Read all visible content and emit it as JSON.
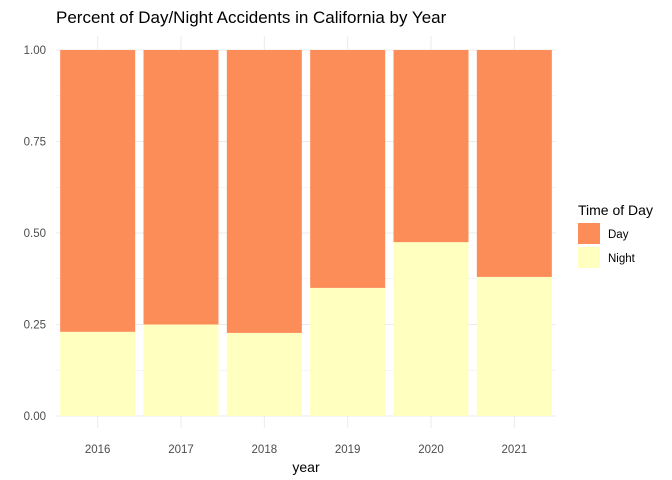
{
  "chart_data": {
    "type": "bar",
    "stacked": true,
    "title": "Percent of Day/Night Accidents in California by Year",
    "xlabel": "year",
    "ylabel": "",
    "categories": [
      "2016",
      "2017",
      "2018",
      "2019",
      "2020",
      "2021"
    ],
    "ylim": [
      0,
      1
    ],
    "yticks": [
      "0.00",
      "0.25",
      "0.50",
      "0.75",
      "1.00"
    ],
    "grid": true,
    "legend": {
      "title": "Time of Day",
      "position": "right"
    },
    "series": [
      {
        "name": "Night",
        "color": "#FFFFBF",
        "values": [
          0.23,
          0.25,
          0.227,
          0.35,
          0.475,
          0.38
        ]
      },
      {
        "name": "Day",
        "color": "#FC8D59",
        "values": [
          0.77,
          0.75,
          0.773,
          0.65,
          0.525,
          0.62
        ]
      }
    ],
    "legend_order": [
      "Day",
      "Night"
    ]
  }
}
